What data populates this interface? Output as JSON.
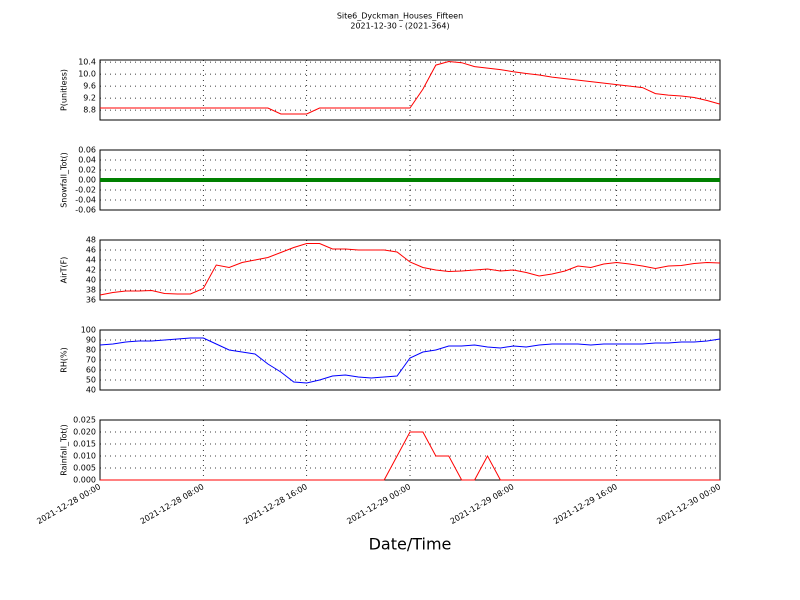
{
  "chart_data": {
    "type": "line",
    "title": "Site6_Dyckman_Houses_Fifteen",
    "subtitle": "2021-12-30 - (2021-364)",
    "xlabel": "Date/Time",
    "grid": true,
    "xlim": [
      "2021-12-28 00:00",
      "2021-12-30 00:00"
    ],
    "xticks": [
      "2021-12-28 00:00",
      "2021-12-28 08:00",
      "2021-12-28 16:00",
      "2021-12-29 00:00",
      "2021-12-29 08:00",
      "2021-12-29 16:00",
      "2021-12-30 00:00"
    ],
    "x": [
      "2021-12-28 00:00",
      "2021-12-28 01:00",
      "2021-12-28 02:00",
      "2021-12-28 03:00",
      "2021-12-28 04:00",
      "2021-12-28 05:00",
      "2021-12-28 06:00",
      "2021-12-28 07:00",
      "2021-12-28 08:00",
      "2021-12-28 09:00",
      "2021-12-28 10:00",
      "2021-12-28 11:00",
      "2021-12-28 12:00",
      "2021-12-28 13:00",
      "2021-12-28 14:00",
      "2021-12-28 15:00",
      "2021-12-28 16:00",
      "2021-12-28 17:00",
      "2021-12-28 18:00",
      "2021-12-28 19:00",
      "2021-12-28 20:00",
      "2021-12-28 21:00",
      "2021-12-28 22:00",
      "2021-12-28 23:00",
      "2021-12-29 00:00",
      "2021-12-29 01:00",
      "2021-12-29 02:00",
      "2021-12-29 03:00",
      "2021-12-29 04:00",
      "2021-12-29 05:00",
      "2021-12-29 06:00",
      "2021-12-29 07:00",
      "2021-12-29 08:00",
      "2021-12-29 09:00",
      "2021-12-29 10:00",
      "2021-12-29 11:00",
      "2021-12-29 12:00",
      "2021-12-29 13:00",
      "2021-12-29 14:00",
      "2021-12-29 15:00",
      "2021-12-29 16:00",
      "2021-12-29 17:00",
      "2021-12-29 18:00",
      "2021-12-29 19:00",
      "2021-12-29 20:00",
      "2021-12-29 21:00",
      "2021-12-29 22:00",
      "2021-12-29 23:00",
      "2021-12-30 00:00"
    ],
    "panels": [
      {
        "ylabel": "P(unitless)",
        "ylim": [
          8.47,
          10.47
        ],
        "yticks": [
          8.8,
          9.2,
          9.6,
          {
            "value": 10.0,
            "label": "10.0"
          },
          10.4
        ],
        "series": [
          {
            "color": "#ff0000",
            "width": 1,
            "values": [
              8.87,
              8.87,
              8.87,
              8.87,
              8.87,
              8.87,
              8.87,
              8.87,
              8.87,
              8.87,
              8.87,
              8.87,
              8.87,
              8.87,
              8.67,
              8.67,
              8.67,
              8.87,
              8.87,
              8.87,
              8.87,
              8.87,
              8.87,
              8.87,
              8.87,
              9.5,
              10.3,
              10.42,
              10.38,
              10.25,
              10.2,
              10.15,
              10.08,
              10.02,
              9.97,
              9.9,
              9.85,
              9.8,
              9.75,
              9.7,
              9.65,
              9.6,
              9.55,
              9.35,
              9.3,
              9.27,
              9.22,
              9.12,
              9.0
            ]
          }
        ]
      },
      {
        "ylabel": "Snowfall_Tot()",
        "ylim": [
          -0.06,
          0.06
        ],
        "yticks": [
          -0.06,
          -0.04,
          -0.02,
          {
            "value": 0,
            "label": "0.00"
          },
          0.02,
          0.04,
          0.06
        ],
        "series": [
          {
            "color": "#008000",
            "width": 4,
            "values": [
              0,
              0,
              0,
              0,
              0,
              0,
              0,
              0,
              0,
              0,
              0,
              0,
              0,
              0,
              0,
              0,
              0,
              0,
              0,
              0,
              0,
              0,
              0,
              0,
              0,
              0,
              0,
              0,
              0,
              0,
              0,
              0,
              0,
              0,
              0,
              0,
              0,
              0,
              0,
              0,
              0,
              0,
              0,
              0,
              0,
              0,
              0,
              0,
              0
            ]
          }
        ]
      },
      {
        "ylabel": "AirT(F)",
        "ylim": [
          36,
          48
        ],
        "yticks": [
          36,
          38,
          40,
          42,
          44,
          46,
          48
        ],
        "series": [
          {
            "color": "#ff0000",
            "width": 1,
            "values": [
              37,
              37.5,
              37.8,
              37.8,
              37.9,
              37.3,
              37.2,
              37.2,
              38.3,
              43,
              42.5,
              43.5,
              44,
              44.5,
              45.5,
              46.5,
              47.3,
              47.3,
              46.2,
              46.2,
              46,
              46,
              46,
              45.6,
              43.6,
              42.5,
              42,
              41.7,
              41.8,
              42,
              42.2,
              41.8,
              42,
              41.5,
              40.8,
              41.2,
              41.8,
              42.8,
              42.5,
              43.2,
              43.5,
              43.2,
              42.8,
              42.3,
              42.8,
              42.9,
              43.3,
              43.5,
              43.4
            ]
          }
        ]
      },
      {
        "ylabel": "RH(%)",
        "ylim": [
          40,
          100
        ],
        "yticks": [
          40,
          50,
          60,
          70,
          80,
          90,
          100
        ],
        "series": [
          {
            "color": "#0000ff",
            "width": 1,
            "values": [
              85,
              86,
              88,
              89,
              89,
              90,
              91,
              92,
              92,
              86,
              80,
              78,
              76,
              66,
              58,
              48,
              47,
              50,
              54,
              55,
              53,
              52,
              53,
              54,
              72,
              78,
              80,
              84,
              84,
              85,
              83,
              82,
              84,
              83,
              85,
              86,
              86,
              86,
              85,
              86,
              86,
              86,
              86,
              87,
              87,
              88,
              88,
              89,
              91
            ]
          }
        ]
      },
      {
        "ylabel": "Rainfall_Tot()",
        "ylim": [
          0,
          0.025
        ],
        "yticks": [
          {
            "value": 0,
            "label": "0.000"
          },
          0.005,
          {
            "value": 0.01,
            "label": "0.010"
          },
          0.015,
          {
            "value": 0.02,
            "label": "0.020"
          },
          0.025
        ],
        "series": [
          {
            "color": "#ff0000",
            "width": 1,
            "values": [
              0,
              0,
              0,
              0,
              0,
              0,
              0,
              0,
              0,
              0,
              0,
              0,
              0,
              0,
              0,
              0,
              0,
              0,
              0,
              0,
              0,
              0,
              0,
              0.01,
              0.02,
              0.02,
              0.01,
              0.01,
              0,
              0,
              0.01,
              0,
              0,
              0,
              0,
              0,
              0,
              0,
              0,
              0,
              0,
              0,
              0,
              0,
              0,
              0,
              0,
              0,
              0
            ]
          }
        ]
      }
    ]
  }
}
